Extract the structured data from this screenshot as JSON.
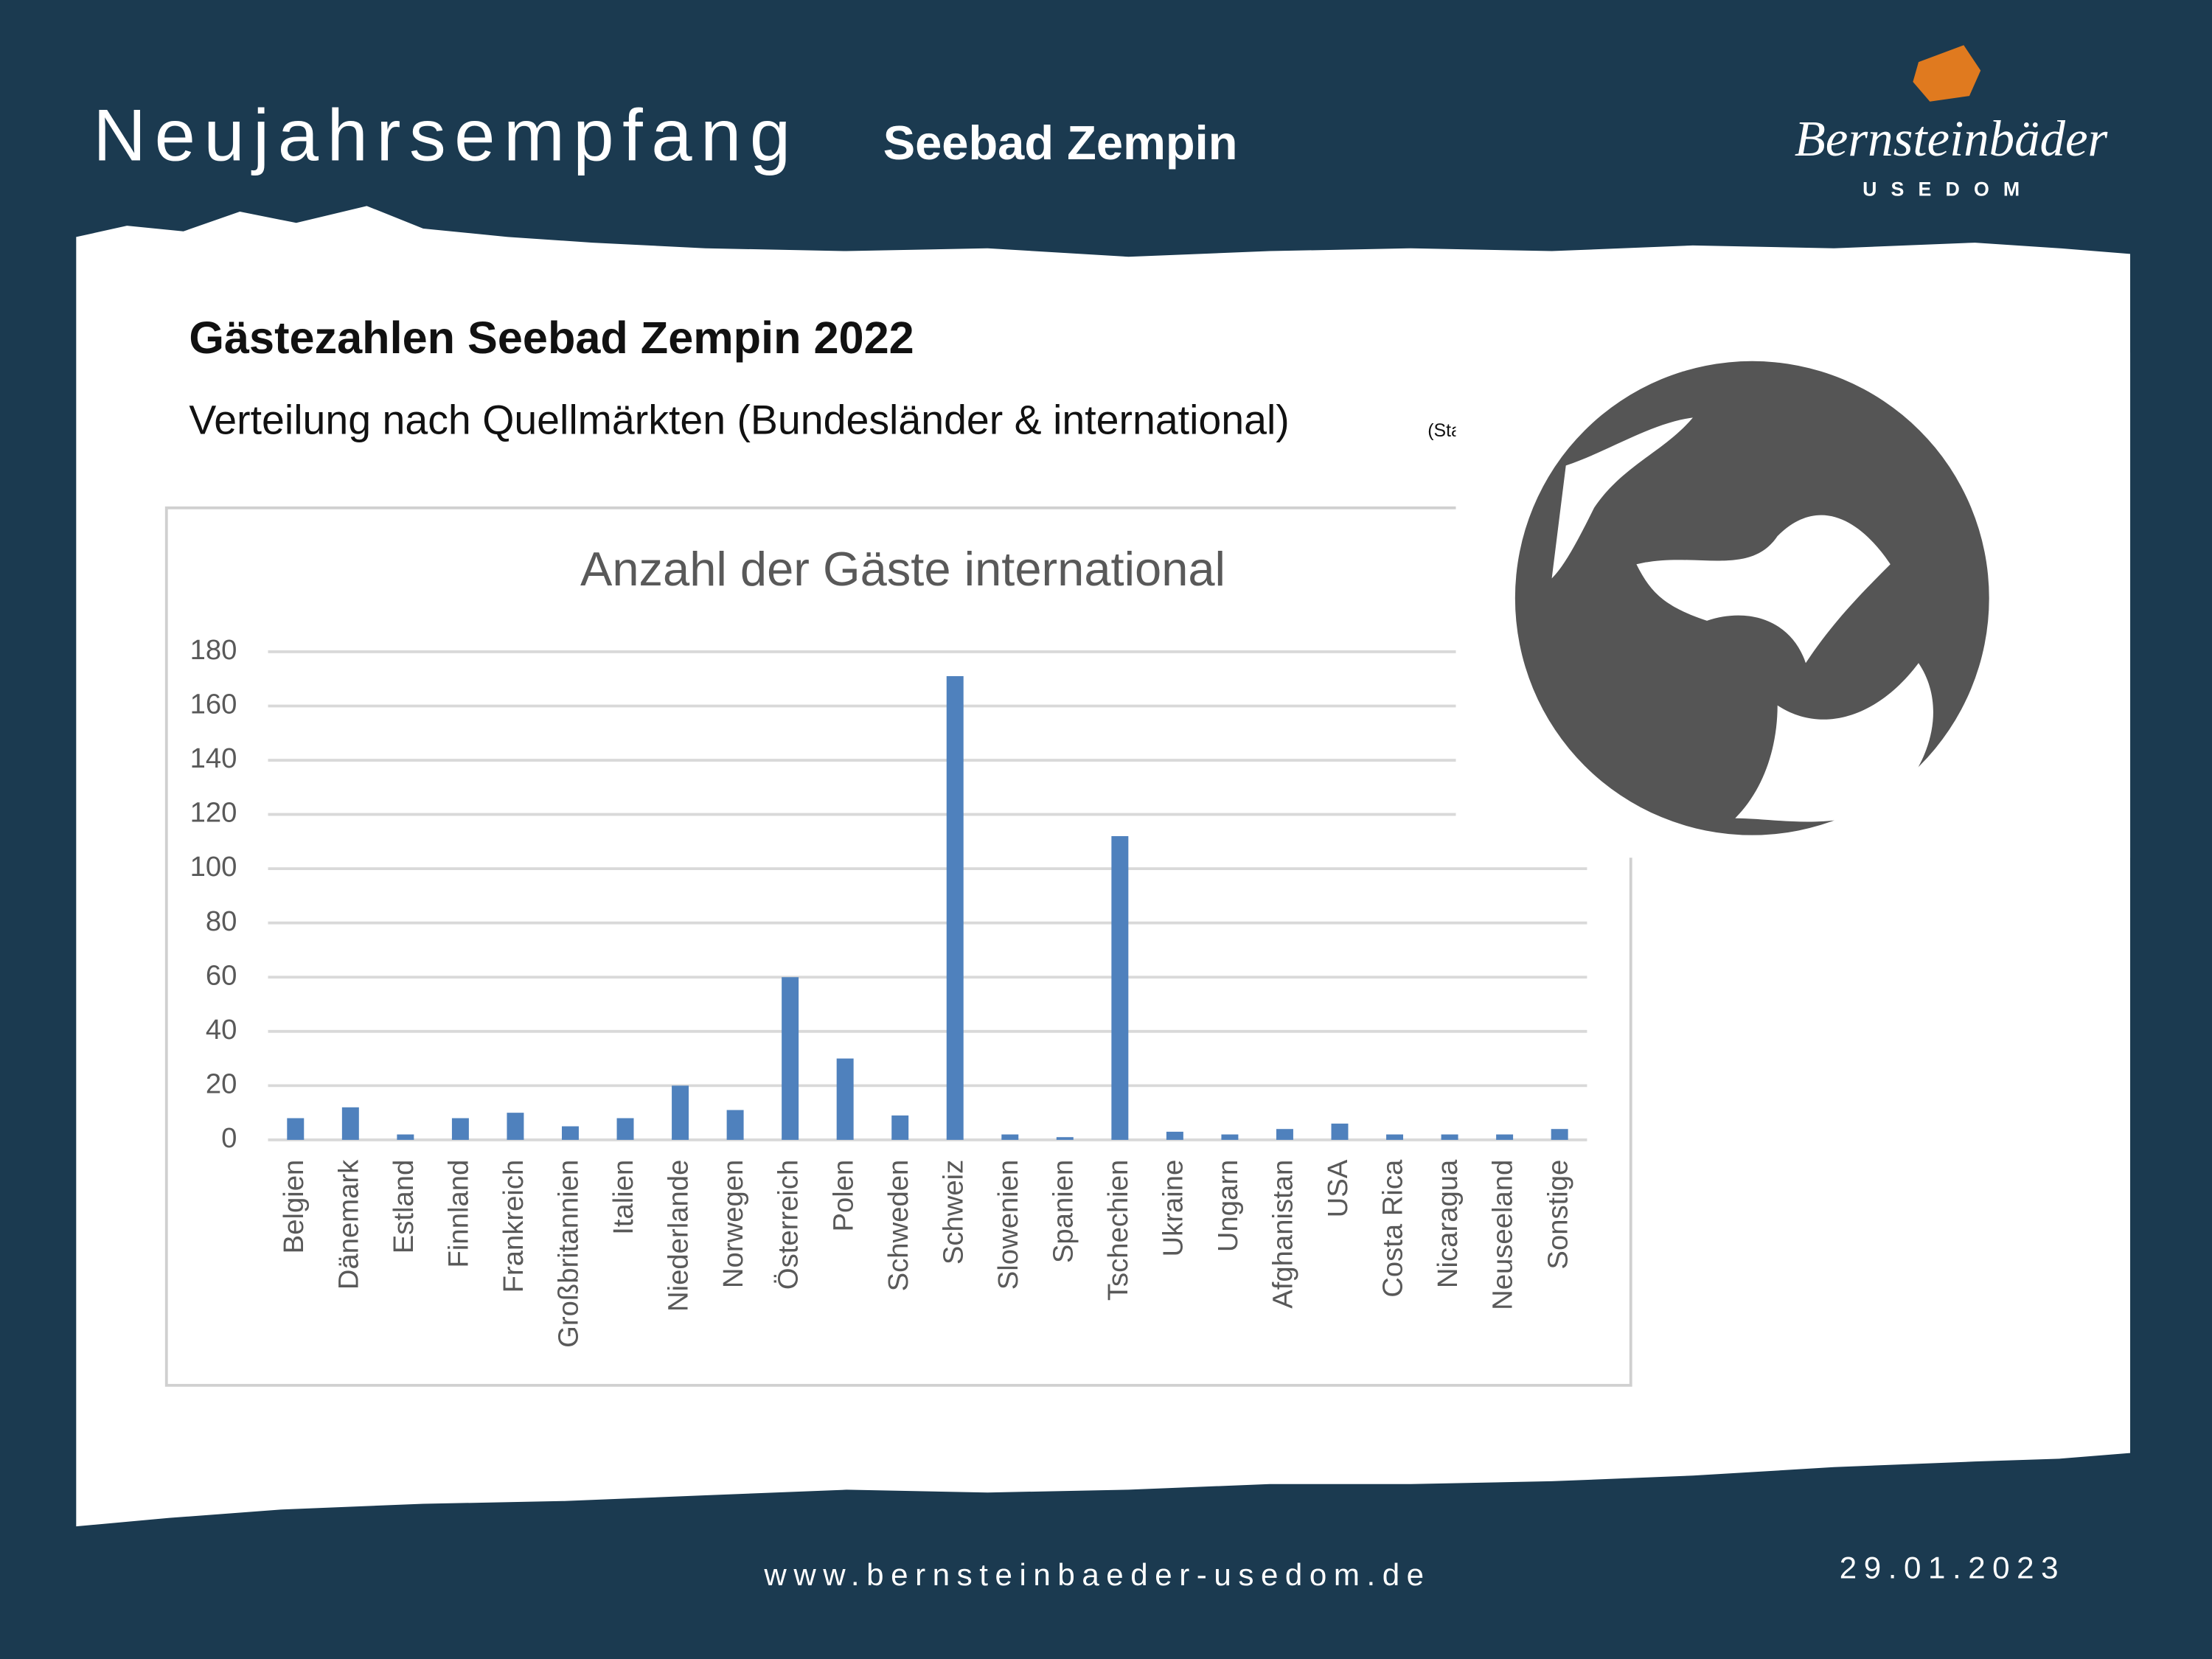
{
  "header": {
    "title": "Neujahrsempfang",
    "subtitle": "Seebad Zempin"
  },
  "logo": {
    "name": "Bernsteinbäder",
    "place": "USEDOM"
  },
  "slide": {
    "heading": "Gästezahlen Seebad Zempin 2022",
    "description": "Verteilung nach Quellmärkten (Bundesländer & international)",
    "note": "(Sta"
  },
  "chart_data": {
    "type": "bar",
    "title": "Anzahl der Gäste international",
    "categories": [
      "Belgien",
      "Dänemark",
      "Estland",
      "Finnland",
      "Frankreich",
      "Großbritannien",
      "Italien",
      "Niederlande",
      "Norwegen",
      "Österreich",
      "Polen",
      "Schweden",
      "Schweiz",
      "Slowenien",
      "Spanien",
      "Tschechien",
      "Ukraine",
      "Ungarn",
      "Afghanistan",
      "USA",
      "Costa Rica",
      "Nicaragua",
      "Neuseeland",
      "Sonstige"
    ],
    "values": [
      8,
      12,
      2,
      8,
      10,
      5,
      8,
      20,
      11,
      60,
      30,
      9,
      171,
      2,
      1,
      112,
      3,
      2,
      4,
      6,
      2,
      2,
      2,
      4
    ],
    "color": "#4f81bd",
    "ylim": [
      0,
      180
    ],
    "yticks": [
      0,
      20,
      40,
      60,
      80,
      100,
      120,
      140,
      160,
      180
    ],
    "grid": true
  },
  "footer": {
    "url": "www.bernsteinbaeder-usedom.de",
    "date": "29.01.2023"
  }
}
